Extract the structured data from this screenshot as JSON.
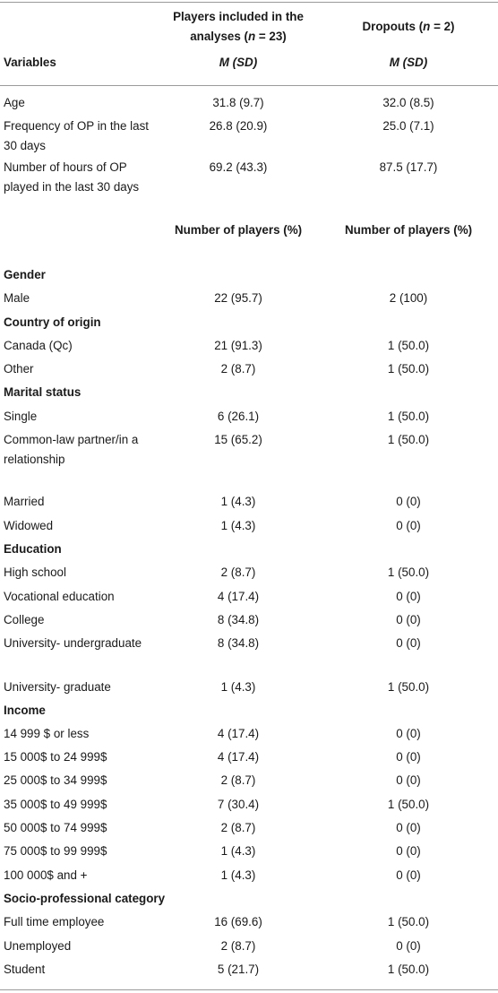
{
  "header": {
    "col_a_line1": "Players included in the",
    "col_a_line2_prefix": "analyses (",
    "col_a_n": "n",
    "col_a_line2_suffix": " = 23)",
    "col_b_prefix": "Dropouts (",
    "col_b_n": "n",
    "col_b_suffix": " = 2)",
    "variables": "Variables",
    "col_a_stat": "M (SD)",
    "col_b_stat": "M (SD)"
  },
  "continuous_rows": [
    {
      "label": "Age",
      "a": "31.8 (9.7)",
      "b": "32.0 (8.5)"
    },
    {
      "label": "Frequency of OP in the last 30 days",
      "a": "26.8 (20.9)",
      "b": "25.0 (7.1)"
    },
    {
      "label": "Number of hours of OP played in the last 30 days",
      "a": "69.2 (43.3)",
      "b": "87.5 (17.7)"
    }
  ],
  "subheader": {
    "col_a": "Number of players (%)",
    "col_b": "Number of players (%)"
  },
  "sections": {
    "gender": "Gender",
    "country": "Country of origin",
    "marital": "Marital status",
    "education": "Education",
    "income": "Income",
    "socio": "Socio-professional category"
  },
  "rows": {
    "male": {
      "label": "Male",
      "a": "22 (95.7)",
      "b": "2 (100)"
    },
    "canada": {
      "label": "Canada (Qc)",
      "a": "21 (91.3)",
      "b": "1 (50.0)"
    },
    "other": {
      "label": "Other",
      "a": "2 (8.7)",
      "b": "1 (50.0)"
    },
    "single": {
      "label": "Single",
      "a": "6 (26.1)",
      "b": "1 (50.0)"
    },
    "common_law": {
      "label": "Common-law partner/in a relationship",
      "a": "15 (65.2)",
      "b": "1 (50.0)"
    },
    "married": {
      "label": "Married",
      "a": "1 (4.3)",
      "b": "0 (0)"
    },
    "widowed": {
      "label": "Widowed",
      "a": "1 (4.3)",
      "b": "0 (0)"
    },
    "high_school": {
      "label": "High school",
      "a": "2 (8.7)",
      "b": "1 (50.0)"
    },
    "vocational": {
      "label": "Vocational education",
      "a": "4 (17.4)",
      "b": "0 (0)"
    },
    "college": {
      "label": "College",
      "a": "8 (34.8)",
      "b": "0 (0)"
    },
    "univ_under": {
      "label": "University- undergraduate",
      "a": "8 (34.8)",
      "b": "0 (0)"
    },
    "univ_grad": {
      "label": "University- graduate",
      "a": "1 (4.3)",
      "b": "1 (50.0)"
    },
    "inc_1": {
      "label": "14 999 $ or less",
      "a": "4 (17.4)",
      "b": "0 (0)"
    },
    "inc_2": {
      "label": "15 000$ to 24 999$",
      "a": "4 (17.4)",
      "b": "0 (0)"
    },
    "inc_3": {
      "label": "25 000$ to 34 999$",
      "a": "2 (8.7)",
      "b": "0 (0)"
    },
    "inc_4": {
      "label": "35 000$ to 49 999$",
      "a": "7 (30.4)",
      "b": "1 (50.0)"
    },
    "inc_5": {
      "label": "50 000$ to 74 999$",
      "a": "2 (8.7)",
      "b": "0 (0)"
    },
    "inc_6": {
      "label": "75 000$ to 99 999$",
      "a": "1 (4.3)",
      "b": "0 (0)"
    },
    "inc_7": {
      "label": "100 000$ and +",
      "a": "1 (4.3)",
      "b": "0 (0)"
    },
    "full_time": {
      "label": "Full time employee",
      "a": "16 (69.6)",
      "b": "1 (50.0)"
    },
    "unemployed": {
      "label": "Unemployed",
      "a": "2 (8.7)",
      "b": "0 (0)"
    },
    "student": {
      "label": "Student",
      "a": "5 (21.7)",
      "b": "1 (50.0)"
    }
  }
}
